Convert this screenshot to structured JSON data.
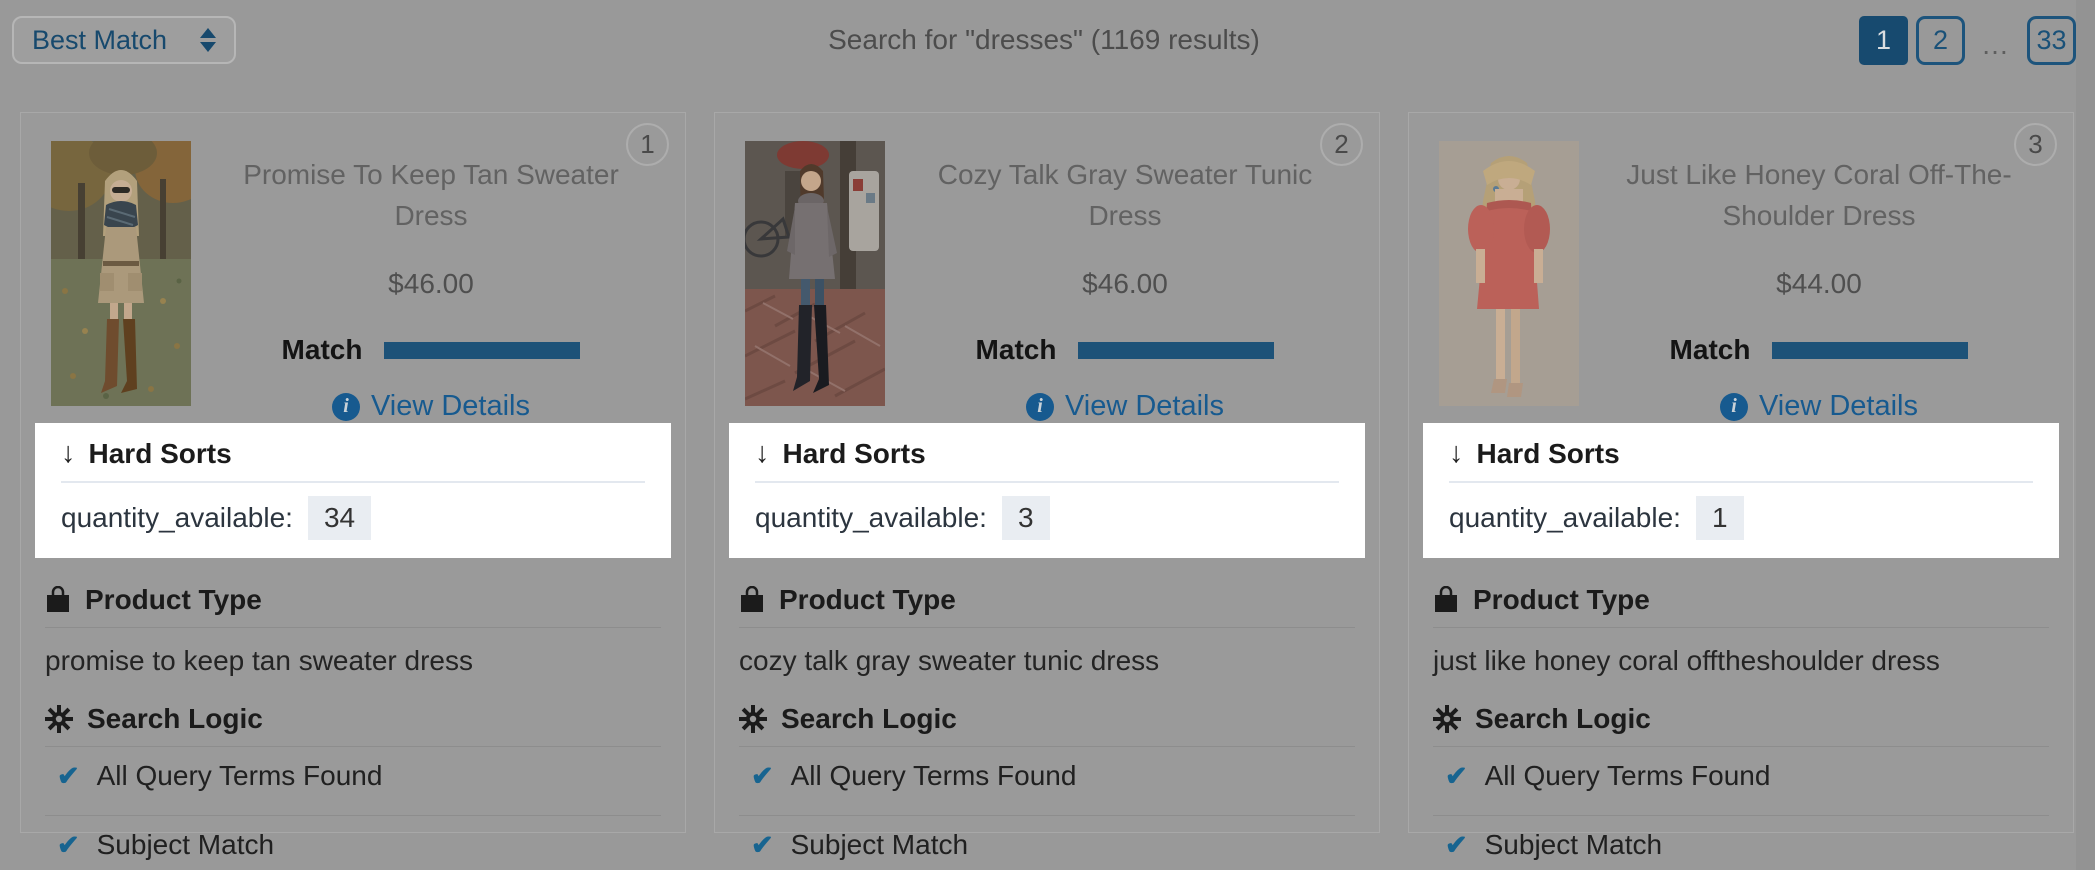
{
  "icons": {
    "check": "✔",
    "down_arrow": "↓",
    "info": "i",
    "ellipsis": "…"
  },
  "colors": {
    "accent_blue": "#175a8f",
    "match_bar": "#1d5278",
    "pagination_active_bg": "#174a6f",
    "highlight_bg": "#ffffff"
  },
  "header": {
    "sort_dropdown": {
      "value": "Best Match"
    },
    "title": "Search for \"dresses\" (1169 results)",
    "pagination": {
      "page1": "1",
      "page2": "2",
      "ellipsis": "…",
      "last_page": "33",
      "active_page": "1"
    }
  },
  "products": [
    {
      "rank": "1",
      "name": "Promise To Keep Tan Sweater Dress",
      "price": "$46.00",
      "match_label": "Match",
      "match_percent": 100,
      "view_details_label": "View Details",
      "hard_sorts": {
        "title": "Hard Sorts",
        "field": "quantity_available:",
        "value": "34"
      },
      "product_type": {
        "title": "Product Type",
        "value": "promise to keep tan sweater dress"
      },
      "search_logic": {
        "title": "Search Logic",
        "items": [
          "All Query Terms Found",
          "Subject Match"
        ]
      }
    },
    {
      "rank": "2",
      "name": "Cozy Talk Gray Sweater Tunic Dress",
      "price": "$46.00",
      "match_label": "Match",
      "match_percent": 100,
      "view_details_label": "View Details",
      "hard_sorts": {
        "title": "Hard Sorts",
        "field": "quantity_available:",
        "value": "3"
      },
      "product_type": {
        "title": "Product Type",
        "value": "cozy talk gray sweater tunic dress"
      },
      "search_logic": {
        "title": "Search Logic",
        "items": [
          "All Query Terms Found",
          "Subject Match"
        ]
      }
    },
    {
      "rank": "3",
      "name": "Just Like Honey Coral Off-The-Shoulder Dress",
      "price": "$44.00",
      "match_label": "Match",
      "match_percent": 100,
      "view_details_label": "View Details",
      "hard_sorts": {
        "title": "Hard Sorts",
        "field": "quantity_available:",
        "value": "1"
      },
      "product_type": {
        "title": "Product Type",
        "value": "just like honey coral offtheshoulder dress"
      },
      "search_logic": {
        "title": "Search Logic",
        "items": [
          "All Query Terms Found",
          "Subject Match"
        ]
      }
    }
  ]
}
